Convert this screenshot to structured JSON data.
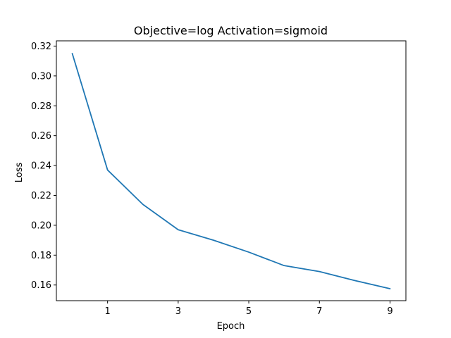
{
  "chart_data": {
    "type": "line",
    "title": "Objective=log Activation=sigmoid",
    "xlabel": "Epoch",
    "ylabel": "Loss",
    "xlim": [
      -0.45,
      9.45
    ],
    "ylim": [
      0.1495,
      0.3235
    ],
    "x_ticks": [
      1,
      3,
      5,
      7,
      9
    ],
    "y_ticks": [
      0.16,
      0.18,
      0.2,
      0.22,
      0.24,
      0.26,
      0.28,
      0.3,
      0.32
    ],
    "y_tick_labels": [
      "0.16",
      "0.18",
      "0.20",
      "0.22",
      "0.24",
      "0.26",
      "0.28",
      "0.30",
      "0.32"
    ],
    "grid": false,
    "series": [
      {
        "color": "#1f77b4",
        "x": [
          0,
          1,
          2,
          3,
          4,
          5,
          6,
          7,
          8,
          9
        ],
        "values": [
          0.315,
          0.237,
          0.214,
          0.197,
          0.19,
          0.182,
          0.173,
          0.169,
          0.163,
          0.1575
        ]
      }
    ]
  }
}
